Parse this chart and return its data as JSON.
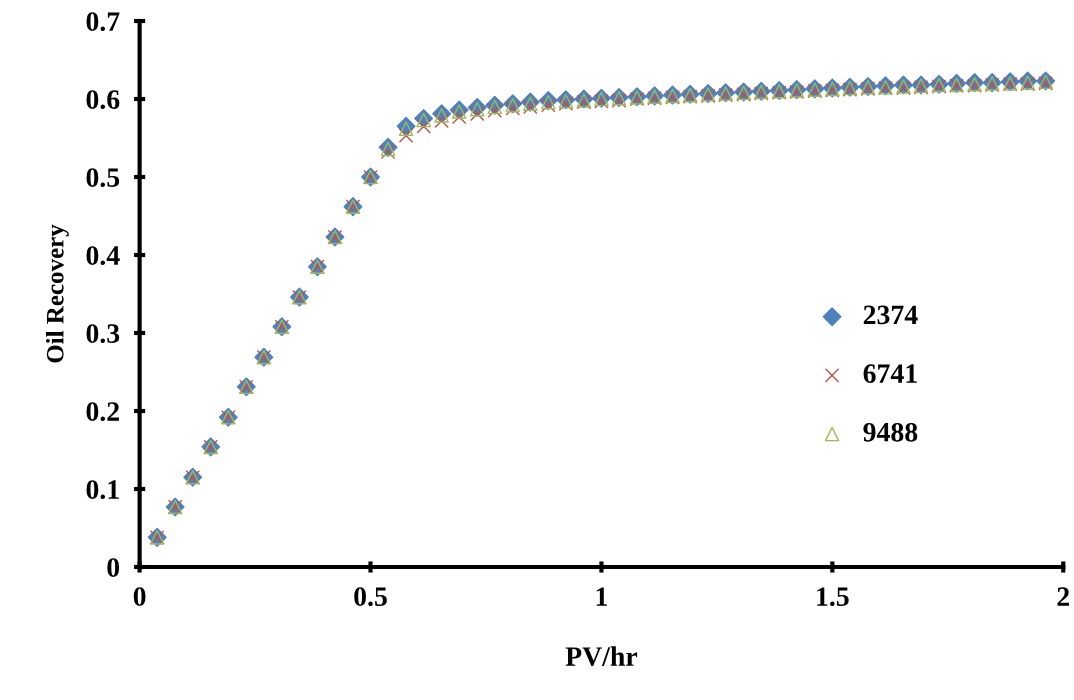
{
  "chart_data": {
    "type": "scatter",
    "xlabel": "PV/hr",
    "ylabel": "Oil Recovery",
    "x": [
      0.038,
      0.077,
      0.115,
      0.154,
      0.192,
      0.231,
      0.269,
      0.308,
      0.346,
      0.385,
      0.423,
      0.462,
      0.5,
      0.538,
      0.577,
      0.615,
      0.654,
      0.692,
      0.731,
      0.769,
      0.808,
      0.846,
      0.885,
      0.923,
      0.962,
      1.0,
      1.038,
      1.077,
      1.115,
      1.154,
      1.192,
      1.231,
      1.269,
      1.308,
      1.346,
      1.385,
      1.423,
      1.462,
      1.5,
      1.538,
      1.577,
      1.615,
      1.654,
      1.692,
      1.731,
      1.769,
      1.808,
      1.846,
      1.885,
      1.923,
      1.962
    ],
    "series": [
      {
        "name": "2374",
        "color": "#4f81bd",
        "marker": "diamond",
        "values": [
          0.038,
          0.077,
          0.115,
          0.154,
          0.192,
          0.231,
          0.269,
          0.308,
          0.346,
          0.385,
          0.423,
          0.462,
          0.5,
          0.538,
          0.565,
          0.575,
          0.581,
          0.586,
          0.589,
          0.592,
          0.594,
          0.596,
          0.598,
          0.599,
          0.6,
          0.601,
          0.602,
          0.603,
          0.604,
          0.605,
          0.606,
          0.607,
          0.608,
          0.609,
          0.61,
          0.611,
          0.612,
          0.613,
          0.614,
          0.615,
          0.616,
          0.617,
          0.618,
          0.618,
          0.619,
          0.62,
          0.621,
          0.621,
          0.622,
          0.623,
          0.623
        ]
      },
      {
        "name": "6741",
        "color": "#c0504d",
        "marker": "cross",
        "values": [
          0.038,
          0.077,
          0.115,
          0.154,
          0.192,
          0.231,
          0.269,
          0.308,
          0.346,
          0.385,
          0.423,
          0.462,
          0.5,
          0.532,
          0.553,
          0.565,
          0.572,
          0.577,
          0.581,
          0.585,
          0.588,
          0.59,
          0.592,
          0.594,
          0.596,
          0.597,
          0.598,
          0.6,
          0.601,
          0.602,
          0.603,
          0.604,
          0.605,
          0.606,
          0.607,
          0.608,
          0.609,
          0.61,
          0.611,
          0.612,
          0.613,
          0.614,
          0.614,
          0.615,
          0.616,
          0.617,
          0.617,
          0.618,
          0.619,
          0.619,
          0.62
        ]
      },
      {
        "name": "9488",
        "color": "#9bbb59",
        "marker": "triangle",
        "values": [
          0.038,
          0.077,
          0.115,
          0.154,
          0.192,
          0.231,
          0.269,
          0.308,
          0.346,
          0.385,
          0.423,
          0.462,
          0.5,
          0.536,
          0.562,
          0.573,
          0.579,
          0.584,
          0.587,
          0.59,
          0.592,
          0.594,
          0.596,
          0.597,
          0.598,
          0.6,
          0.601,
          0.602,
          0.603,
          0.604,
          0.605,
          0.606,
          0.607,
          0.608,
          0.609,
          0.61,
          0.611,
          0.612,
          0.613,
          0.614,
          0.615,
          0.615,
          0.616,
          0.617,
          0.618,
          0.618,
          0.619,
          0.62,
          0.62,
          0.621,
          0.622
        ]
      }
    ],
    "xlim": [
      0,
      2
    ],
    "xticks": [
      0,
      0.5,
      1,
      1.5,
      2
    ],
    "ylim": [
      0,
      0.7
    ],
    "yticks": [
      0,
      0.1,
      0.2,
      0.3,
      0.4,
      0.5,
      0.6,
      0.7
    ],
    "grid": false,
    "legend": "right"
  }
}
